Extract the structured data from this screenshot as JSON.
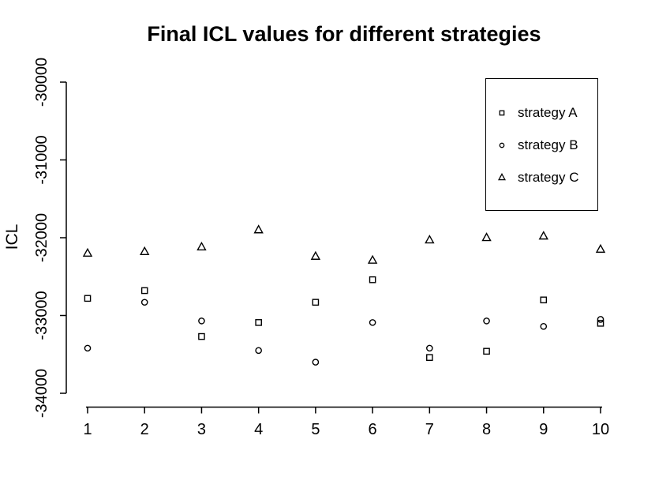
{
  "title": "Final ICL values for different strategies",
  "colors": {
    "foreground": "#000000",
    "background": "#ffffff"
  },
  "chart_data": {
    "type": "scatter",
    "title": "Final ICL values for different strategies",
    "xlabel": "",
    "ylabel": "ICL",
    "x": [
      1,
      2,
      3,
      4,
      5,
      6,
      7,
      8,
      9,
      10
    ],
    "series": [
      {
        "name": "strategy A",
        "marker": "square",
        "values": [
          -32780,
          -32680,
          -33270,
          -33090,
          -32830,
          -32540,
          -33540,
          -33460,
          -32800,
          -33100
        ]
      },
      {
        "name": "strategy B",
        "marker": "circle",
        "values": [
          -33420,
          -32830,
          -33070,
          -33450,
          -33600,
          -33090,
          -33420,
          -33070,
          -33140,
          -33050
        ]
      },
      {
        "name": "strategy C",
        "marker": "triangle",
        "values": [
          -32200,
          -32180,
          -32120,
          -31900,
          -32240,
          -32290,
          -32030,
          -32000,
          -31980,
          -32150
        ]
      }
    ],
    "xticks": [
      1,
      2,
      3,
      4,
      5,
      6,
      7,
      8,
      9,
      10
    ],
    "yticks": [
      -30000,
      -31000,
      -32000,
      -33000,
      -34000
    ],
    "xlim": [
      1,
      10
    ],
    "ylim": [
      -34000,
      -30000
    ],
    "grid": false,
    "legend": {
      "position": "top-right",
      "entries": [
        "strategy A",
        "strategy B",
        "strategy C"
      ]
    }
  }
}
